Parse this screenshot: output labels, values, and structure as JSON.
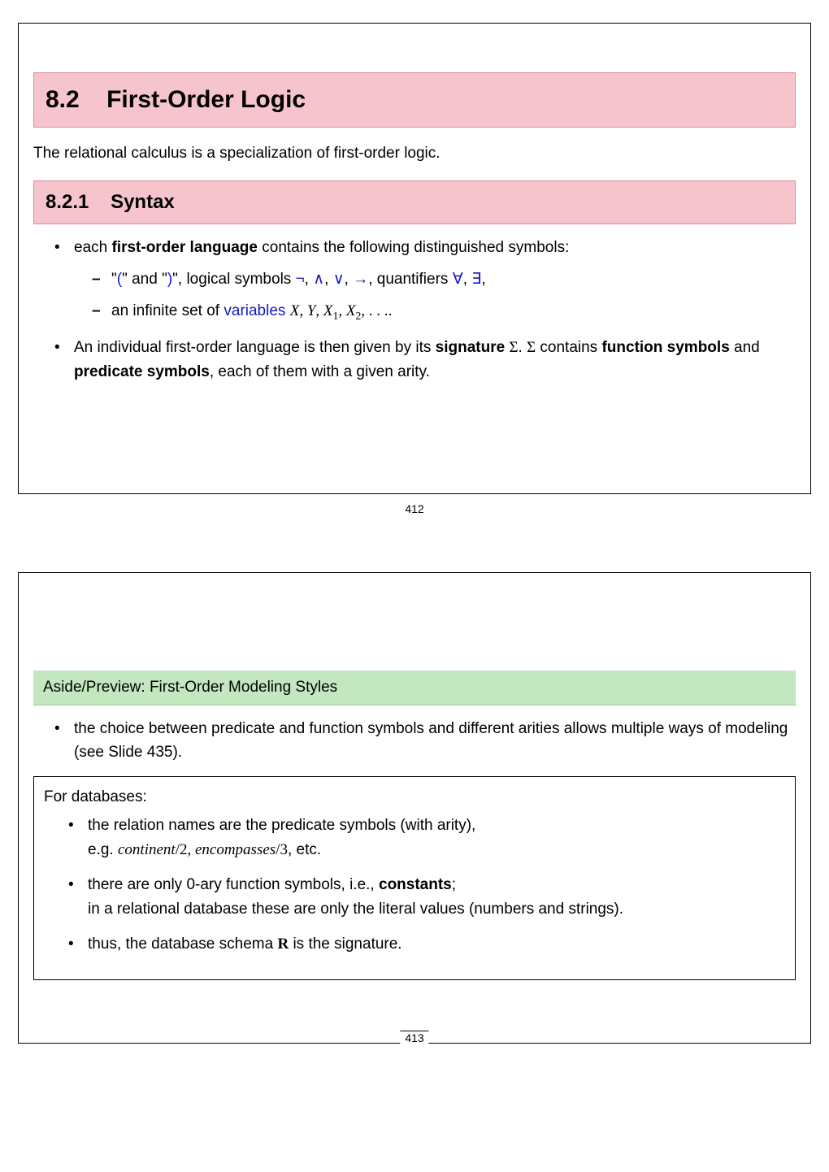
{
  "slide1": {
    "section_number": "8.2",
    "section_title": "First-Order Logic",
    "intro": "The relational calculus is a specialization of first-order logic.",
    "subsection_number": "8.2.1",
    "subsection_title": "Syntax",
    "b1_pre": "each ",
    "b1_bold": "first-order language",
    "b1_post": " contains the following distinguished symbols:",
    "b1s1_a": "\"",
    "b1s1_b": "(",
    "b1s1_c": "\" and \"",
    "b1s1_d": ")",
    "b1s1_e": "\", logical symbols ",
    "b1s1_neg": "¬",
    "sep": ", ",
    "b1s1_and": "∧",
    "b1s1_or": "∨",
    "b1s1_imp": "→",
    "b1s1_f": ", quantifiers ",
    "b1s1_forall": "∀",
    "b1s1_exists": "∃",
    "b1s1_g": ",",
    "b1s2_a": "an infinite set of ",
    "b1s2_vars": "variables",
    "b1s2_sp": " ",
    "b1s2_X": "X",
    "b1s2_c1": ", ",
    "b1s2_Y": "Y",
    "b1s2_c2": ", ",
    "b1s2_X1a": "X",
    "b1s2_X1b": "1",
    "b1s2_c3": ", ",
    "b1s2_X2a": "X",
    "b1s2_X2b": "2",
    "b1s2_c4": ", . . .",
    "b1s2_dot": ".",
    "b2_a": "An individual first-order language is then given by its ",
    "b2_sig": "signature",
    "b2_b": " ",
    "b2_Sigma1": "Σ",
    "b2_c": ". ",
    "b2_Sigma2": "Σ",
    "b2_d": " contains ",
    "b2_fun": "function symbols",
    "b2_e": " and ",
    "b2_pred": "predicate symbols",
    "b2_f": ", each of them with a given arity.",
    "page": "412"
  },
  "slide2": {
    "green_title": "Aside/Preview: First-Order Modeling Styles",
    "g1": "the choice between predicate and function symbols and different arities allows multiple ways of modeling (see Slide 435).",
    "db_head": "For databases:",
    "d1a": "the relation names are the predicate symbols (with arity),",
    "d1b_pre": "e.g. ",
    "d1b_c": "continent",
    "d1b_m1": "/2, ",
    "d1b_e": "encompasses",
    "d1b_m2": "/3",
    "d1b_post": ", etc.",
    "d2a_pre": "there are only 0-ary function symbols, i.e., ",
    "d2a_const": "constants",
    "d2a_post": ";",
    "d2b": "in a relational database these are only the literal values (numbers and strings).",
    "d3_pre": "thus, the database schema ",
    "d3_R": "R",
    "d3_post": " is the signature.",
    "page": "413"
  },
  "colors": {
    "pink_bg": "#f6c4cc",
    "pink_border": "#d98f9a",
    "green_bg": "#c3e8c0",
    "blue": "#1818c5"
  }
}
